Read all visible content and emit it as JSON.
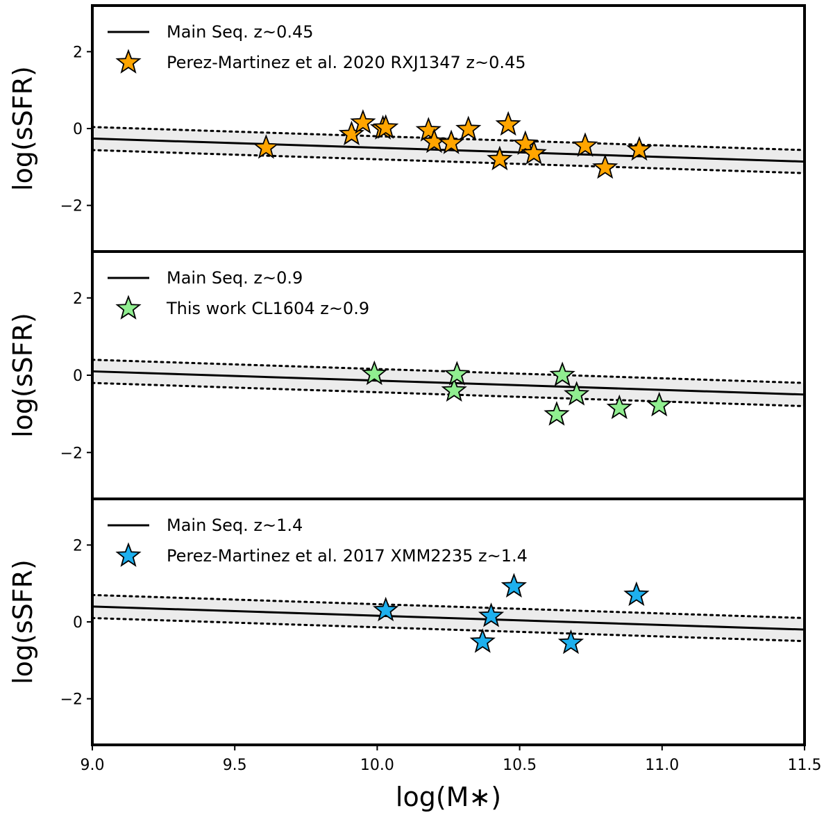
{
  "chart_data": [
    {
      "type": "scatter",
      "panel": "top",
      "ylabel": "log(sSFR)",
      "xlim": [
        9.0,
        11.5
      ],
      "ylim": [
        -3.2,
        3.2
      ],
      "yticks": [
        2,
        0,
        -2
      ],
      "yticklabels": [
        "2",
        "0",
        "−2"
      ],
      "main_sequence": {
        "label": "Main Seq. z~0.45",
        "slope": -0.24,
        "intercept_at_9": -0.26,
        "scatter": 0.3
      },
      "series": [
        {
          "name": "Perez-Martinez et al. 2020 RXJ1347 z~0.45",
          "color": "#ffa500",
          "points": [
            {
              "x": 9.61,
              "y": -0.5
            },
            {
              "x": 9.91,
              "y": -0.15
            },
            {
              "x": 9.95,
              "y": 0.15
            },
            {
              "x": 10.02,
              "y": 0.0
            },
            {
              "x": 10.03,
              "y": 0.02
            },
            {
              "x": 10.18,
              "y": -0.05
            },
            {
              "x": 10.2,
              "y": -0.35
            },
            {
              "x": 10.26,
              "y": -0.38
            },
            {
              "x": 10.32,
              "y": -0.02
            },
            {
              "x": 10.43,
              "y": -0.8
            },
            {
              "x": 10.46,
              "y": 0.1
            },
            {
              "x": 10.52,
              "y": -0.4
            },
            {
              "x": 10.55,
              "y": -0.65
            },
            {
              "x": 10.73,
              "y": -0.45
            },
            {
              "x": 10.8,
              "y": -1.02
            },
            {
              "x": 10.92,
              "y": -0.55
            }
          ]
        }
      ]
    },
    {
      "type": "scatter",
      "panel": "middle",
      "ylabel": "log(sSFR)",
      "xlim": [
        9.0,
        11.5
      ],
      "ylim": [
        -3.2,
        3.2
      ],
      "yticks": [
        2,
        0,
        -2
      ],
      "yticklabels": [
        "2",
        "0",
        "−2"
      ],
      "main_sequence": {
        "label": "Main Seq. z~0.9",
        "slope": -0.24,
        "intercept_at_9": 0.1,
        "scatter": 0.3
      },
      "series": [
        {
          "name": "This work CL1604 z~0.9",
          "color": "#90ee90",
          "points": [
            {
              "x": 9.99,
              "y": 0.03
            },
            {
              "x": 10.27,
              "y": -0.4
            },
            {
              "x": 10.28,
              "y": 0.02
            },
            {
              "x": 10.63,
              "y": -1.02
            },
            {
              "x": 10.65,
              "y": 0.0
            },
            {
              "x": 10.7,
              "y": -0.5
            },
            {
              "x": 10.85,
              "y": -0.85
            },
            {
              "x": 10.99,
              "y": -0.78
            }
          ]
        }
      ]
    },
    {
      "type": "scatter",
      "panel": "bottom",
      "ylabel": "log(sSFR)",
      "xlabel": "log(M∗)",
      "xlim": [
        9.0,
        11.5
      ],
      "ylim": [
        -3.2,
        3.2
      ],
      "xticks": [
        9.0,
        9.5,
        10.0,
        10.5,
        11.0,
        11.5
      ],
      "xticklabels": [
        "9.0",
        "9.5",
        "10.0",
        "10.5",
        "11.0",
        "11.5"
      ],
      "yticks": [
        2,
        0,
        -2
      ],
      "yticklabels": [
        "2",
        "0",
        "−2"
      ],
      "main_sequence": {
        "label": "Main Seq. z~1.4",
        "slope": -0.24,
        "intercept_at_9": 0.4,
        "scatter": 0.3
      },
      "series": [
        {
          "name": "Perez-Martinez et al. 2017 XMM2235 z~1.4",
          "color": "#1eb0ee",
          "points": [
            {
              "x": 10.03,
              "y": 0.3
            },
            {
              "x": 10.37,
              "y": -0.52
            },
            {
              "x": 10.4,
              "y": 0.15
            },
            {
              "x": 10.48,
              "y": 0.92
            },
            {
              "x": 10.68,
              "y": -0.55
            },
            {
              "x": 10.91,
              "y": 0.7
            }
          ]
        }
      ]
    }
  ]
}
